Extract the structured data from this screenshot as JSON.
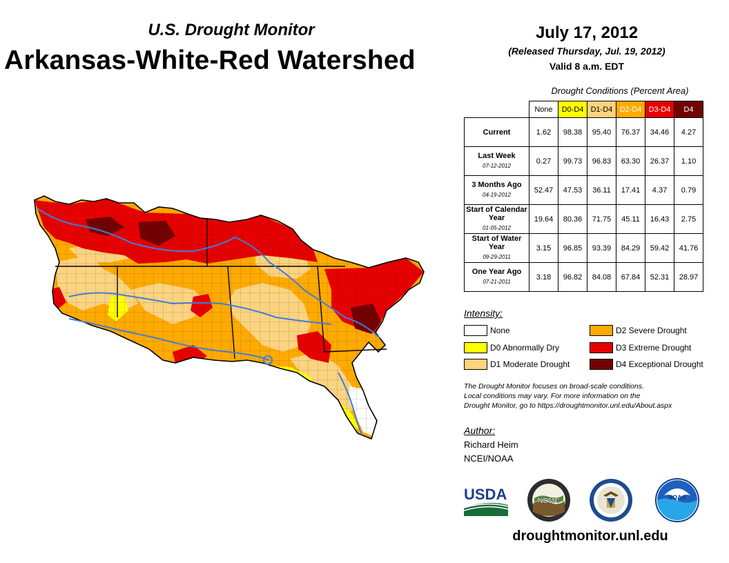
{
  "header": {
    "supertitle": "U.S. Drought Monitor",
    "title": "Arkansas-White-Red Watershed",
    "date": "July 17, 2012",
    "released": "(Released Thursday, Jul. 19, 2012)",
    "valid": "Valid 8 a.m. EDT"
  },
  "table": {
    "caption": "Drought Conditions (Percent Area)",
    "columns": [
      "None",
      "D0-D4",
      "D1-D4",
      "D2-D4",
      "D3-D4",
      "D4"
    ],
    "rows": [
      {
        "label": "Current",
        "date": "",
        "values": [
          "1.62",
          "98.38",
          "95.40",
          "76.37",
          "34.46",
          "4.27"
        ]
      },
      {
        "label": "Last Week",
        "date": "07-12-2012",
        "values": [
          "0.27",
          "99.73",
          "96.83",
          "63.30",
          "26.37",
          "1.10"
        ]
      },
      {
        "label": "3 Months Ago",
        "date": "04-19-2012",
        "values": [
          "52.47",
          "47.53",
          "36.11",
          "17.41",
          "4.37",
          "0.79"
        ]
      },
      {
        "label": "Start of Calendar Year",
        "date": "01-05-2012",
        "values": [
          "19.64",
          "80.36",
          "71.75",
          "45.11",
          "16.43",
          "2.75"
        ]
      },
      {
        "label": "Start of Water Year",
        "date": "09-29-2011",
        "values": [
          "3.15",
          "96.85",
          "93.39",
          "84.29",
          "59.42",
          "41.76"
        ]
      },
      {
        "label": "One Year Ago",
        "date": "07-21-2011",
        "values": [
          "3.18",
          "96.82",
          "84.08",
          "67.84",
          "52.31",
          "28.97"
        ]
      }
    ]
  },
  "legend": {
    "title": "Intensity:",
    "items": [
      {
        "label": "None",
        "color": "#ffffff"
      },
      {
        "label": "D0 Abnormally Dry",
        "color": "#ffff00"
      },
      {
        "label": "D1 Moderate Drought",
        "color": "#fcd37f"
      },
      {
        "label": "D2 Severe Drought",
        "color": "#ffaa00"
      },
      {
        "label": "D3 Extreme Drought",
        "color": "#e60000"
      },
      {
        "label": "D4 Exceptional Drought",
        "color": "#730000"
      }
    ]
  },
  "note": {
    "line1": "The Drought Monitor focuses on broad-scale conditions.",
    "line2": "Local conditions may vary. For more information on the",
    "line3": "Drought Monitor, go to https://droughtmonitor.unl.edu/About.aspx"
  },
  "author": {
    "label": "Author:",
    "name": "Richard Heim",
    "org": "NCEI/NOAA"
  },
  "logos": {
    "usda": "USDA",
    "ndmc": "NDMC",
    "noaa": "NOAA"
  },
  "footer": {
    "url": "droughtmonitor.unl.edu"
  },
  "colors": {
    "none": "#ffffff",
    "d0": "#ffff00",
    "d1": "#fcd37f",
    "d2": "#ffaa00",
    "d3": "#e60000",
    "d4": "#730000",
    "river": "#3d7fd6"
  }
}
